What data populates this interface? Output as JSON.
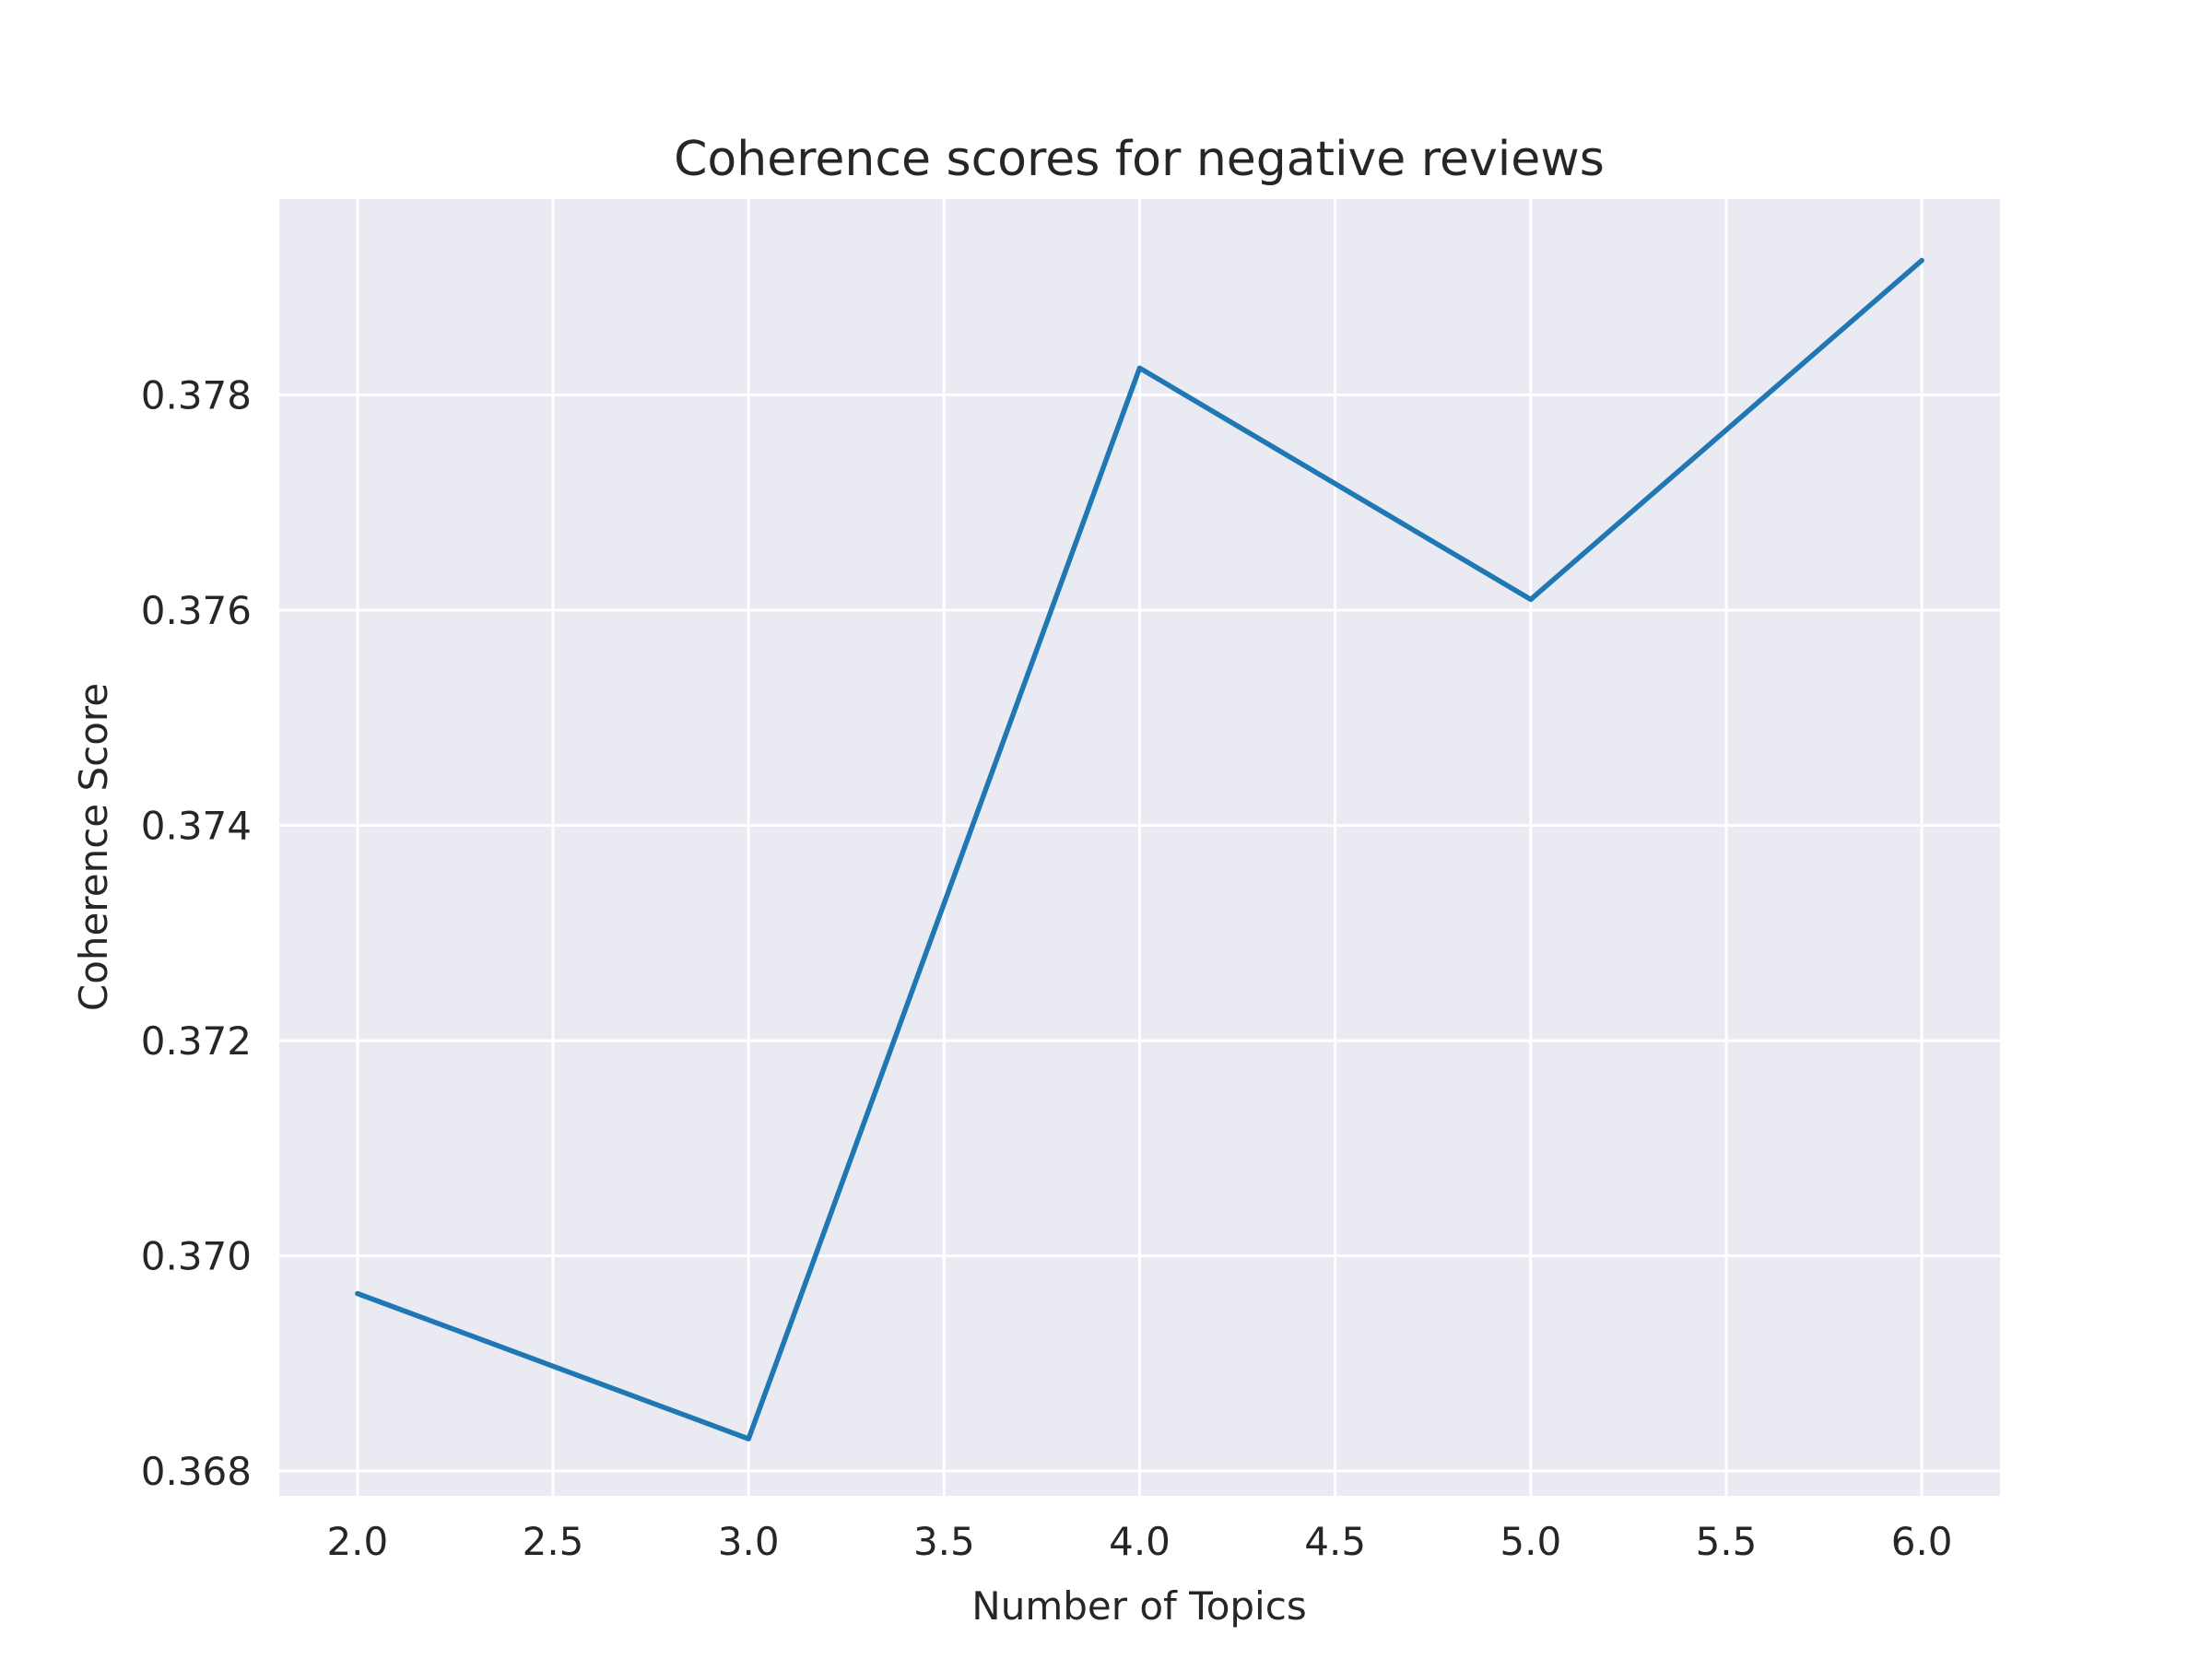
{
  "chart_data": {
    "type": "line",
    "title": "Coherence scores for negative reviews",
    "xlabel": "Number of Topics",
    "ylabel": "Coherence Score",
    "x": [
      2,
      3,
      4,
      5,
      6
    ],
    "series": [
      {
        "values": [
          0.36965,
          0.3683,
          0.37825,
          0.3761,
          0.37925
        ]
      }
    ],
    "xlim": [
      1.8,
      6.2
    ],
    "ylim": [
      0.36777,
      0.37982
    ],
    "xticks": [
      2.0,
      2.5,
      3.0,
      3.5,
      4.0,
      4.5,
      5.0,
      5.5,
      6.0
    ],
    "xtick_labels": [
      "2.0",
      "2.5",
      "3.0",
      "3.5",
      "4.0",
      "4.5",
      "5.0",
      "5.5",
      "6.0"
    ],
    "yticks": [
      0.368,
      0.37,
      0.372,
      0.374,
      0.376,
      0.378
    ],
    "ytick_labels": [
      "0.368",
      "0.370",
      "0.372",
      "0.374",
      "0.376",
      "0.378"
    ],
    "grid": true,
    "colors": {
      "background": "#eaeaf2",
      "grid": "#ffffff",
      "line": "#1f77b4"
    }
  }
}
